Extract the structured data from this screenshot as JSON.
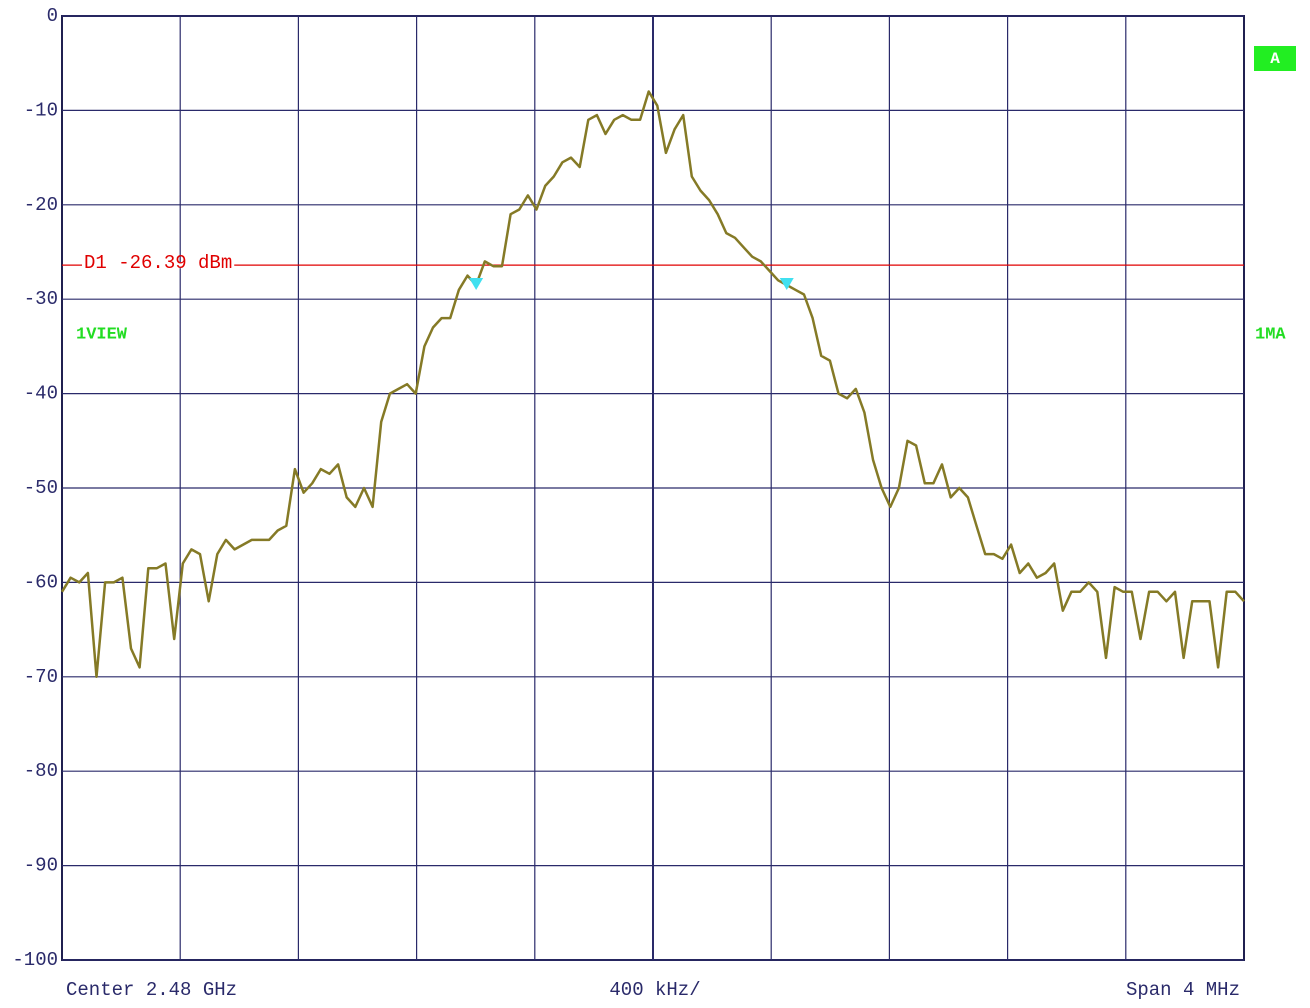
{
  "chart_data": {
    "type": "line",
    "ylim": [
      -100,
      0
    ],
    "yticks": [
      0,
      -10,
      -20,
      -30,
      -40,
      -50,
      -60,
      -70,
      -80,
      -90,
      -100
    ],
    "grid": true,
    "x_left_label": "Center 2.48 GHz",
    "x_center_label": "400 kHz/",
    "x_right_label": "Span 4 MHz",
    "reference_line": {
      "value": -26.39,
      "label": "D1 -26.39 dBm",
      "color": "#e00000"
    },
    "left_label": "1VIEW",
    "right_label": "1MA",
    "trace_label": "A",
    "markers": [
      48,
      84
    ],
    "marker_color": "#40e0f0",
    "series": [
      {
        "color": "#857a26",
        "values": [
          -61,
          -59.5,
          -60,
          -59,
          -70,
          -60,
          -60,
          -59.5,
          -67,
          -69,
          -58.5,
          -58.5,
          -58,
          -66,
          -58,
          -56.5,
          -57,
          -62,
          -57,
          -55.5,
          -56.5,
          -56,
          -55.5,
          -55.5,
          -55.5,
          -54.5,
          -54,
          -48,
          -50.5,
          -49.5,
          -48,
          -48.5,
          -47.5,
          -51,
          -52,
          -50,
          -52,
          -43,
          -40,
          -39.5,
          -39,
          -40,
          -35,
          -33,
          -32,
          -32,
          -29,
          -27.5,
          -28.5,
          -26,
          -26.5,
          -26.5,
          -21,
          -20.5,
          -19,
          -20.5,
          -18,
          -17,
          -15.5,
          -15,
          -16,
          -11,
          -10.5,
          -12.5,
          -11,
          -10.5,
          -11,
          -11,
          -8,
          -9.5,
          -14.5,
          -12,
          -10.5,
          -17,
          -18.5,
          -19.5,
          -21,
          -23,
          -23.5,
          -24.5,
          -25.5,
          -26,
          -27,
          -28,
          -28.5,
          -29,
          -29.5,
          -32,
          -36,
          -36.5,
          -40,
          -40.5,
          -39.5,
          -42,
          -47,
          -50,
          -52,
          -50,
          -45,
          -45.5,
          -49.5,
          -49.5,
          -47.5,
          -51,
          -50,
          -51,
          -54,
          -57,
          -57,
          -57.5,
          -56,
          -59,
          -58,
          -59.5,
          -59,
          -58,
          -63,
          -61,
          -61,
          -60,
          -61,
          -68,
          -60.5,
          -61,
          -61,
          -66,
          -61,
          -61,
          -62,
          -61,
          -68,
          -62,
          -62,
          -62,
          -69,
          -61,
          -61,
          -62
        ]
      }
    ]
  }
}
